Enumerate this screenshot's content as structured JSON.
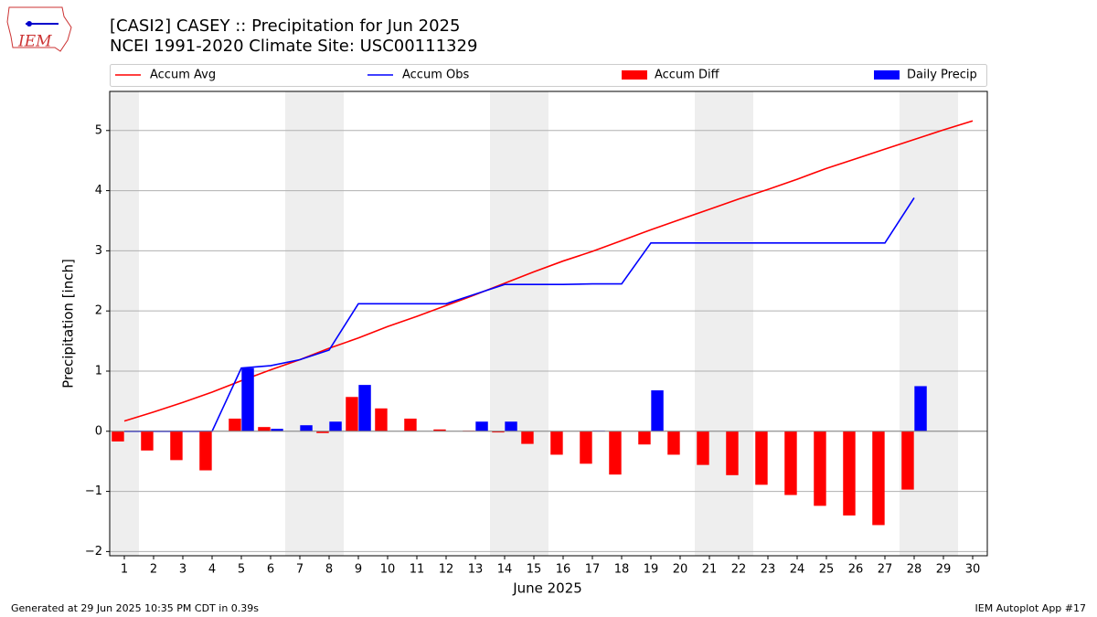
{
  "chart_data": {
    "type": "combo",
    "logo_text": "IEM",
    "title": "[CASI2] CASEY :: Precipitation for Jun 2025",
    "subtitle": "NCEI 1991-2020 Climate Site: USC00111329",
    "x_label": "June 2025",
    "y_label": "Precipitation [inch]",
    "footer_left": "Generated at 29 Jun 2025 10:35 PM CDT in 0.39s",
    "footer_right": "IEM Autoplot App #17",
    "x": [
      1,
      2,
      3,
      4,
      5,
      6,
      7,
      8,
      9,
      10,
      11,
      12,
      13,
      14,
      15,
      16,
      17,
      18,
      19,
      20,
      21,
      22,
      23,
      24,
      25,
      26,
      27,
      28,
      29,
      30
    ],
    "xlim": [
      0.5,
      30.5
    ],
    "xticks": [
      1,
      2,
      3,
      4,
      5,
      6,
      7,
      8,
      9,
      10,
      11,
      12,
      13,
      14,
      15,
      16,
      17,
      18,
      19,
      20,
      21,
      22,
      23,
      24,
      25,
      26,
      27,
      28,
      29,
      30
    ],
    "ylim": [
      -2.07,
      5.65
    ],
    "yticks": [
      {
        "value": -2,
        "label": "−2"
      },
      {
        "value": -1,
        "label": "−1"
      },
      0,
      1,
      2,
      3,
      4,
      5
    ],
    "grid": true,
    "shaded_ranges": [
      [
        0.5,
        1.5
      ],
      [
        6.5,
        8.5
      ],
      [
        13.5,
        15.5
      ],
      [
        20.5,
        22.5
      ],
      [
        27.5,
        29.5
      ]
    ],
    "shade_color": "#eeeeee",
    "series": [
      {
        "name": "Accum Avg",
        "kind": "line",
        "color": "#ff0000",
        "values": [
          0.17,
          0.32,
          0.48,
          0.65,
          0.84,
          1.02,
          1.19,
          1.38,
          1.55,
          1.74,
          1.91,
          2.09,
          2.27,
          2.46,
          2.65,
          2.83,
          2.99,
          3.17,
          3.35,
          3.52,
          3.69,
          3.86,
          4.02,
          4.19,
          4.37,
          4.53,
          4.69,
          4.85,
          5.01,
          5.16
        ]
      },
      {
        "name": "Accum Obs",
        "kind": "line",
        "color": "#0000ff",
        "values": [
          0,
          0,
          0,
          0,
          1.05,
          1.09,
          1.19,
          1.35,
          2.12,
          2.12,
          2.12,
          2.12,
          2.28,
          2.44,
          2.44,
          2.44,
          2.45,
          2.45,
          3.13,
          3.13,
          3.13,
          3.13,
          3.13,
          3.13,
          3.13,
          3.13,
          3.13,
          3.88,
          null,
          null
        ]
      },
      {
        "name": "Accum Diff",
        "kind": "bar",
        "offset": -0.22,
        "color": "#ff0000",
        "values": [
          -0.17,
          -0.32,
          -0.48,
          -0.65,
          0.21,
          0.07,
          0,
          -0.03,
          0.57,
          0.38,
          0.21,
          0.03,
          0.01,
          -0.02,
          -0.21,
          -0.39,
          -0.54,
          -0.72,
          -0.22,
          -0.39,
          -0.56,
          -0.73,
          -0.89,
          -1.06,
          -1.24,
          -1.4,
          -1.56,
          -0.97,
          null,
          null
        ]
      },
      {
        "name": "Daily Precip",
        "kind": "bar",
        "offset": 0.22,
        "color": "#0000ff",
        "values": [
          0,
          0,
          0,
          0,
          1.05,
          0.04,
          0.1,
          0.16,
          0.77,
          0,
          0,
          0,
          0.16,
          0.16,
          0,
          0,
          0.01,
          0,
          0.68,
          0,
          0,
          0,
          0,
          0,
          0,
          0,
          0,
          0.75,
          null,
          null
        ]
      }
    ]
  }
}
